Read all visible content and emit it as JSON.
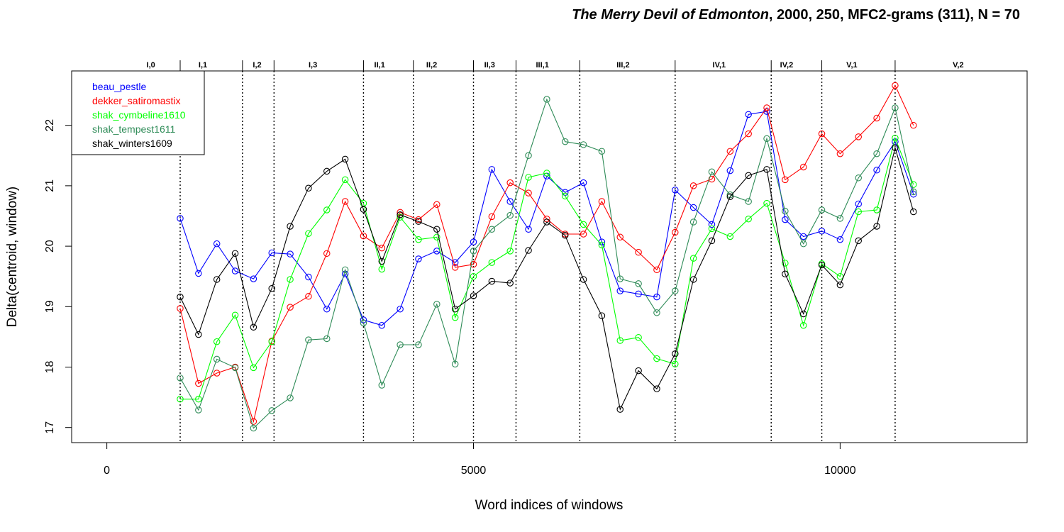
{
  "chart_data": {
    "type": "line",
    "title_italic": "The Merry Devil of Edmonton",
    "title_rest": ", 2000, 250, MFC2-grams (311), N = 70",
    "xlabel": "Word indices of windows",
    "ylabel": "Delta(centroid, window)",
    "xlim": [
      -480,
      12550
    ],
    "ylim": [
      16.75,
      22.9
    ],
    "x_ticks": [
      0,
      5000,
      10000
    ],
    "y_ticks": [
      17,
      18,
      19,
      20,
      21,
      22
    ],
    "grid": false,
    "legend_position": "top-left",
    "scene_boundaries": [
      1000,
      1850,
      2280,
      3500,
      4180,
      5000,
      5580,
      6450,
      7750,
      9060,
      9750,
      10750
    ],
    "scene_labels": [
      {
        "label": "I,0",
        "x": 600
      },
      {
        "label": "I,1",
        "x": 1310
      },
      {
        "label": "I,2",
        "x": 2050
      },
      {
        "label": "I,3",
        "x": 2810
      },
      {
        "label": "II,1",
        "x": 3720
      },
      {
        "label": "II,2",
        "x": 4430
      },
      {
        "label": "II,3",
        "x": 5220
      },
      {
        "label": "III,1",
        "x": 5940
      },
      {
        "label": "III,2",
        "x": 7040
      },
      {
        "label": "IV,1",
        "x": 8350
      },
      {
        "label": "IV,2",
        "x": 9270
      },
      {
        "label": "V,1",
        "x": 10160
      },
      {
        "label": "V,2",
        "x": 11610
      }
    ],
    "x": [
      1000,
      1250,
      1500,
      1750,
      2000,
      2250,
      2500,
      2750,
      3000,
      3250,
      3500,
      3750,
      4000,
      4250,
      4500,
      4750,
      5000,
      5250,
      5500,
      5750,
      6000,
      6250,
      6500,
      6750,
      7000,
      7250,
      7500,
      7750,
      8000,
      8250,
      8500,
      8750,
      9000,
      9250,
      9500,
      9750,
      10000,
      10250,
      10500,
      10750,
      11000
    ],
    "series": [
      {
        "name": "beau_pestle",
        "color": "#0000ff",
        "values": [
          20.46,
          19.55,
          20.04,
          19.59,
          19.46,
          19.89,
          19.87,
          19.49,
          18.96,
          19.54,
          18.78,
          18.69,
          18.96,
          19.79,
          19.92,
          19.73,
          20.07,
          21.27,
          20.74,
          20.28,
          21.16,
          20.89,
          21.05,
          20.07,
          19.26,
          19.21,
          19.16,
          20.93,
          20.64,
          20.36,
          21.25,
          22.18,
          22.23,
          20.44,
          20.16,
          20.25,
          20.11,
          20.7,
          21.26,
          21.73,
          20.86
        ]
      },
      {
        "name": "dekker_satiromastix",
        "color": "#ff0000",
        "values": [
          18.97,
          17.73,
          17.9,
          18.0,
          17.1,
          18.43,
          18.99,
          19.17,
          19.88,
          20.74,
          20.17,
          19.97,
          20.56,
          20.44,
          20.69,
          19.65,
          19.7,
          20.49,
          21.05,
          20.88,
          20.45,
          20.2,
          20.2,
          20.74,
          20.15,
          19.9,
          19.61,
          20.23,
          21.0,
          21.11,
          21.57,
          21.86,
          22.29,
          21.1,
          21.31,
          21.86,
          21.53,
          21.81,
          22.12,
          22.66,
          22.0
        ]
      },
      {
        "name": "shak_cymbeline1610",
        "color": "#00ff00",
        "values": [
          17.47,
          17.47,
          18.42,
          18.86,
          17.99,
          18.42,
          19.45,
          20.21,
          20.6,
          21.1,
          20.71,
          19.62,
          20.48,
          20.11,
          20.15,
          18.82,
          19.5,
          19.73,
          19.92,
          21.14,
          21.21,
          20.83,
          20.36,
          20.02,
          18.44,
          18.49,
          18.14,
          18.05,
          19.8,
          20.29,
          20.16,
          20.45,
          20.71,
          19.72,
          18.69,
          19.71,
          19.5,
          20.57,
          20.6,
          21.79,
          21.02
        ]
      },
      {
        "name": "shak_tempest1611",
        "color": "#2e8b57",
        "values": [
          17.82,
          17.29,
          18.13,
          17.99,
          16.99,
          17.28,
          17.49,
          18.45,
          18.47,
          19.61,
          18.73,
          17.7,
          18.37,
          18.37,
          19.04,
          18.05,
          19.92,
          20.28,
          20.51,
          21.5,
          22.43,
          21.73,
          21.68,
          21.57,
          19.46,
          19.38,
          18.9,
          19.26,
          20.4,
          21.23,
          20.85,
          20.74,
          21.78,
          20.58,
          20.04,
          20.6,
          20.46,
          21.13,
          21.53,
          22.29,
          20.9
        ]
      },
      {
        "name": "shak_winters1609",
        "color": "#000000",
        "values": [
          19.16,
          18.54,
          19.45,
          19.88,
          18.66,
          19.3,
          20.33,
          20.96,
          21.24,
          21.44,
          20.61,
          19.75,
          20.52,
          20.41,
          20.28,
          18.96,
          19.18,
          19.42,
          19.39,
          19.93,
          20.4,
          20.18,
          19.45,
          18.85,
          17.3,
          17.94,
          17.64,
          18.22,
          19.45,
          20.09,
          20.82,
          21.17,
          21.27,
          19.54,
          18.88,
          19.69,
          19.36,
          20.09,
          20.33,
          21.63,
          20.57
        ]
      }
    ]
  }
}
